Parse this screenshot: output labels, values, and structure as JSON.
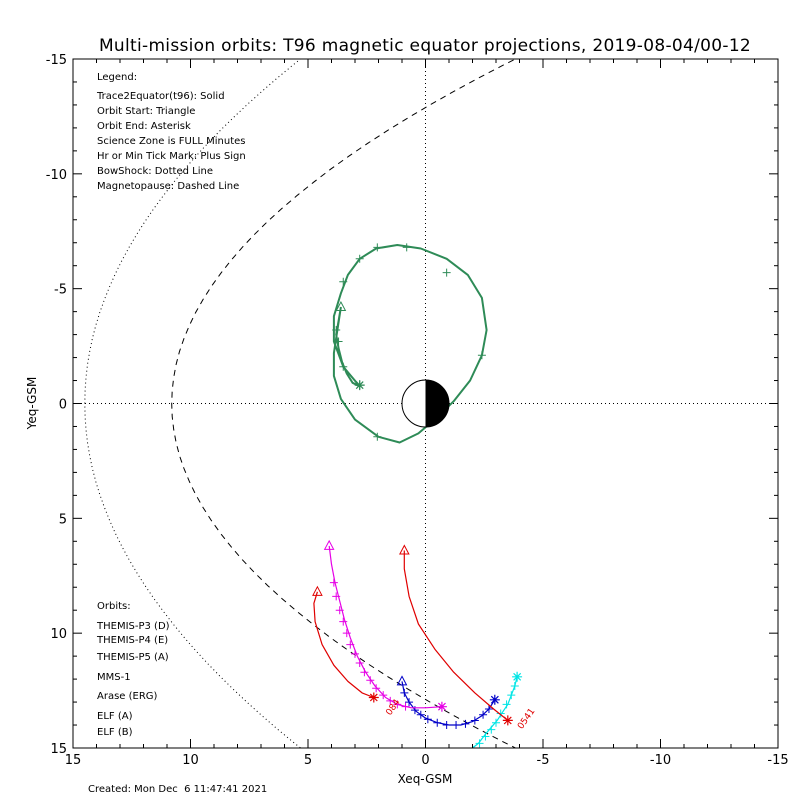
{
  "title": "Multi-mission orbits: T96 magnetic equator projections, 2019-08-04/00-12",
  "footer": "Created: Mon Dec  6 11:47:41 2021",
  "legend": {
    "heading": "Legend:",
    "items": [
      "Trace2Equator(t96): Solid",
      "Orbit Start: Triangle",
      "Orbit End: Asterisk",
      "Science Zone is FULL Minutes",
      "Hr or Min Tick Mark: Plus Sign",
      "BowShock: Dotted Line",
      "Magnetopause: Dashed Line"
    ]
  },
  "orbits_legend": {
    "heading": "Orbits:",
    "items": [
      {
        "label": "THEMIS-P3 (D)",
        "color": "#00e5e5"
      },
      {
        "label": "THEMIS-P4 (E)",
        "color": "#0000c8"
      },
      {
        "label": "THEMIS-P5 (A)",
        "color": "#e600e6"
      },
      {
        "label": "MMS-1",
        "color": "#000000"
      },
      {
        "label": "Arase (ERG)",
        "color": "#2e8b57"
      },
      {
        "label": "ELF (A)",
        "color": "#3a8ee6"
      },
      {
        "label": "ELF (B)",
        "color": "#e00000"
      }
    ]
  },
  "chart_data": {
    "type": "line",
    "xlabel": "Xeq-GSM",
    "ylabel": "Yeq-GSM",
    "xlim": [
      15,
      -15
    ],
    "ylim": [
      -15,
      15
    ],
    "xticks": [
      15,
      10,
      5,
      0,
      -5,
      -10,
      -15
    ],
    "yticks": [
      -15,
      -10,
      -5,
      0,
      5,
      10,
      15
    ],
    "xtick_labels": [
      "15",
      "10",
      "5",
      "0",
      "-5",
      "-10",
      "-15"
    ],
    "ytick_labels": [
      "-15",
      "-10",
      "-5",
      "0",
      "5",
      "10",
      "15"
    ],
    "series": [
      {
        "name": "Arase (ERG)",
        "color": "#2e8b57",
        "points": [
          [
            3.6,
            -4.2
          ],
          [
            3.7,
            -3.6
          ],
          [
            3.8,
            -3.0
          ],
          [
            3.7,
            -2.4
          ],
          [
            3.55,
            -1.8
          ],
          [
            3.35,
            -1.3
          ],
          [
            3.1,
            -0.9
          ],
          [
            2.8,
            -0.75
          ],
          [
            2.8,
            -0.75
          ],
          [
            3.5,
            -1.6
          ],
          [
            3.9,
            -2.7
          ],
          [
            3.9,
            -3.8
          ],
          [
            3.6,
            -4.8
          ],
          [
            3.3,
            -5.6
          ],
          [
            2.8,
            -6.3
          ],
          [
            2.1,
            -6.75
          ],
          [
            1.2,
            -6.9
          ],
          [
            0.2,
            -6.75
          ],
          [
            -0.9,
            -6.3
          ],
          [
            -1.8,
            -5.6
          ],
          [
            -2.4,
            -4.6
          ],
          [
            -2.6,
            -3.2
          ],
          [
            -2.4,
            -2.1
          ],
          [
            -1.9,
            -1.0
          ],
          [
            -1.2,
            -0.1
          ],
          [
            -0.5,
            0.6
          ],
          [
            0.3,
            1.3
          ],
          [
            1.1,
            1.7
          ],
          [
            2.0,
            1.45
          ],
          [
            3.0,
            0.7
          ],
          [
            3.6,
            -0.2
          ],
          [
            3.9,
            -1.2
          ],
          [
            3.9,
            -2.2
          ],
          [
            3.75,
            -3.2
          ],
          [
            3.6,
            -4.2
          ]
        ],
        "start": [
          3.6,
          -4.2
        ],
        "end": [
          2.8,
          -0.8
        ],
        "ticks": [
          [
            2.8,
            -0.8
          ],
          [
            3.5,
            -1.6
          ],
          [
            3.7,
            -2.7
          ],
          [
            3.8,
            -3.2
          ],
          [
            3.5,
            -5.3
          ],
          [
            2.8,
            -6.3
          ],
          [
            2.05,
            -6.8
          ],
          [
            0.8,
            -6.8
          ],
          [
            -0.9,
            -5.7
          ],
          [
            -2.4,
            -2.1
          ],
          [
            2.05,
            1.45
          ]
        ]
      },
      {
        "name": "THEMIS-P3 (D)",
        "color": "#00e5e5",
        "points": [
          [
            -3.9,
            11.9
          ],
          [
            -3.8,
            12.3
          ],
          [
            -3.65,
            12.7
          ],
          [
            -3.5,
            13.1
          ],
          [
            -3.3,
            13.4
          ],
          [
            -3.05,
            13.8
          ],
          [
            -2.8,
            14.1
          ],
          [
            -2.55,
            14.4
          ],
          [
            -2.25,
            14.8
          ],
          [
            -2.0,
            15.0
          ],
          [
            -1.85,
            15.2
          ],
          [
            -1.7,
            15.5
          ]
        ],
        "end": [
          -3.9,
          11.9
        ],
        "ticks": [
          [
            -3.8,
            12.3
          ],
          [
            -3.65,
            12.7
          ],
          [
            -3.45,
            13.1
          ],
          [
            -3.2,
            13.5
          ],
          [
            -3.0,
            13.9
          ],
          [
            -2.8,
            14.2
          ],
          [
            -2.55,
            14.5
          ],
          [
            -2.3,
            14.8
          ],
          [
            -2.05,
            15.1
          ],
          [
            -1.8,
            15.4
          ]
        ]
      },
      {
        "name": "THEMIS-P4 (E)",
        "color": "#0000c8",
        "points": [
          [
            1.0,
            12.1
          ],
          [
            0.9,
            12.6
          ],
          [
            0.7,
            13.0
          ],
          [
            0.4,
            13.4
          ],
          [
            0.0,
            13.7
          ],
          [
            -0.5,
            13.9
          ],
          [
            -1.0,
            14.0
          ],
          [
            -1.5,
            14.0
          ],
          [
            -2.0,
            13.85
          ],
          [
            -2.4,
            13.6
          ],
          [
            -2.7,
            13.3
          ],
          [
            -2.95,
            12.9
          ]
        ],
        "start": [
          1.0,
          12.1
        ],
        "end": [
          -2.95,
          12.9
        ],
        "ticks": [
          [
            0.9,
            12.6
          ],
          [
            0.7,
            13.0
          ],
          [
            0.45,
            13.35
          ],
          [
            0.2,
            13.55
          ],
          [
            -0.1,
            13.75
          ],
          [
            -0.5,
            13.9
          ],
          [
            -0.9,
            14.0
          ],
          [
            -1.3,
            14.0
          ],
          [
            -1.7,
            13.95
          ],
          [
            -2.1,
            13.8
          ],
          [
            -2.45,
            13.55
          ],
          [
            -2.7,
            13.3
          ]
        ]
      },
      {
        "name": "THEMIS-P5 (A)",
        "color": "#e600e6",
        "points": [
          [
            4.1,
            6.2
          ],
          [
            4.0,
            7.0
          ],
          [
            3.85,
            7.8
          ],
          [
            3.65,
            8.6
          ],
          [
            3.45,
            9.4
          ],
          [
            3.2,
            10.2
          ],
          [
            2.9,
            11.0
          ],
          [
            2.55,
            11.7
          ],
          [
            2.15,
            12.3
          ],
          [
            1.7,
            12.8
          ],
          [
            1.2,
            13.1
          ],
          [
            0.6,
            13.25
          ],
          [
            0.0,
            13.25
          ],
          [
            -0.7,
            13.2
          ]
        ],
        "start": [
          4.1,
          6.2
        ],
        "end": [
          -0.7,
          13.2
        ],
        "ticks": [
          [
            3.9,
            7.8
          ],
          [
            3.8,
            8.4
          ],
          [
            3.65,
            9.0
          ],
          [
            3.5,
            9.5
          ],
          [
            3.35,
            10.0
          ],
          [
            3.2,
            10.5
          ],
          [
            3.0,
            10.9
          ],
          [
            2.8,
            11.3
          ],
          [
            2.6,
            11.7
          ],
          [
            2.35,
            12.05
          ],
          [
            2.1,
            12.4
          ],
          [
            1.8,
            12.7
          ],
          [
            1.5,
            12.95
          ],
          [
            1.2,
            13.1
          ],
          [
            0.85,
            13.2
          ]
        ]
      },
      {
        "name": "ELF (B) 084",
        "color": "#e00000",
        "points": [
          [
            4.6,
            8.2
          ],
          [
            4.75,
            8.7
          ],
          [
            4.7,
            9.5
          ],
          [
            4.4,
            10.5
          ],
          [
            3.9,
            11.4
          ],
          [
            3.3,
            12.1
          ],
          [
            2.7,
            12.6
          ],
          [
            2.2,
            12.8
          ]
        ],
        "start": [
          4.6,
          8.2
        ],
        "end": [
          2.2,
          12.8
        ]
      },
      {
        "name": "ELF (B) 0541",
        "color": "#e00000",
        "points": [
          [
            0.9,
            6.4
          ],
          [
            0.9,
            7.2
          ],
          [
            0.7,
            8.4
          ],
          [
            0.3,
            9.6
          ],
          [
            -0.4,
            10.7
          ],
          [
            -1.2,
            11.7
          ],
          [
            -2.1,
            12.6
          ],
          [
            -2.9,
            13.3
          ],
          [
            -3.5,
            13.8
          ]
        ],
        "start": [
          0.9,
          6.4
        ],
        "end": [
          -3.5,
          13.8
        ]
      }
    ],
    "annotations": [
      {
        "text": "084",
        "color": "#e00000",
        "x": 1.5,
        "y": 13.6
      },
      {
        "text": "0541",
        "color": "#e00000",
        "x": -4.1,
        "y": 14.2
      }
    ]
  }
}
